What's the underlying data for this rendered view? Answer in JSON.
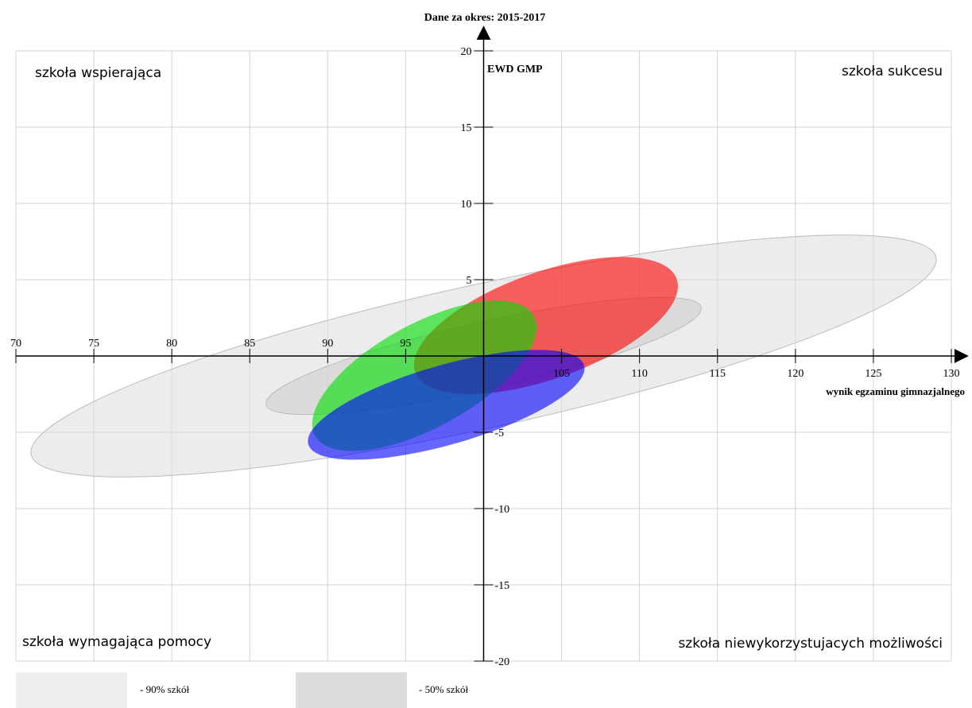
{
  "chart_data": {
    "type": "scatter",
    "title": "Dane za okres: 2015-2017",
    "xlabel": "wynik egzaminu gimnazjalnego",
    "ylabel": "EWD GMP",
    "xlim": [
      70,
      130
    ],
    "ylim": [
      -20,
      20
    ],
    "x_ticks": [
      70,
      75,
      80,
      85,
      90,
      95,
      105,
      110,
      115,
      120,
      125,
      130
    ],
    "y_ticks": [
      20,
      15,
      10,
      5,
      -5,
      -10,
      -15,
      -20
    ],
    "x_tick_labels": [
      "70",
      "75",
      "80",
      "85",
      "90",
      "95",
      "105",
      "110",
      "115",
      "120",
      "125",
      "130"
    ],
    "y_tick_labels": [
      "20",
      "15",
      "10",
      "5",
      "-5",
      "-10",
      "-15",
      "-20"
    ],
    "grid": true,
    "quadrant_labels": {
      "top_left": "szkoła wspierająca",
      "top_right": "szkoła sukcesu",
      "bottom_left": "szkoła wymagająca pomocy",
      "bottom_right": "szkoła niewykorzystujacych możliwości"
    },
    "regions": [
      {
        "kind": "outer",
        "cx": 100.0,
        "cy": 0.0,
        "rx": 29.7,
        "ry": 4.7,
        "angle": 12.3,
        "color": "#dddddd"
      },
      {
        "kind": "inner",
        "cx": 100.0,
        "cy": 0.0,
        "rx": 14.3,
        "ry": 2.2,
        "angle": 12.6,
        "color": "#cccccc"
      }
    ],
    "ellipses": [
      {
        "cx": 104.0,
        "cy": 2.0,
        "rx": 8.9,
        "ry": 3.5,
        "angle": 19.6,
        "color": "#ff0000"
      },
      {
        "cx": 96.2,
        "cy": -1.3,
        "rx": 8.0,
        "ry": 3.4,
        "angle": 28.7,
        "color": "#00dd00"
      },
      {
        "cx": 97.6,
        "cy": -3.2,
        "rx": 9.2,
        "ry": 2.6,
        "angle": 16.0,
        "color": "#0000ff"
      }
    ],
    "legend": [
      {
        "label": "- 90% szkół",
        "color": "#eeeeee"
      },
      {
        "label": "- 50% szkół",
        "color": "#dddddd"
      }
    ]
  }
}
